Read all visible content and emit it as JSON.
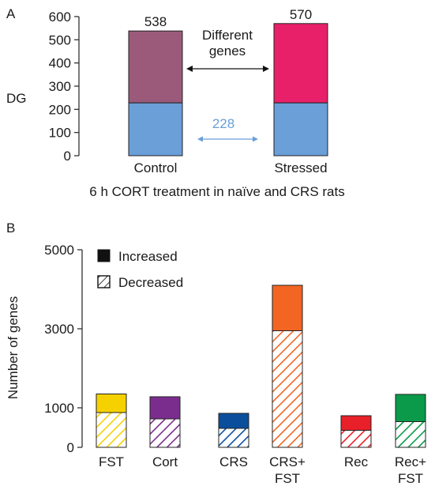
{
  "chart_data": [
    {
      "panel_label": "A",
      "type": "bar",
      "stacked": true,
      "categories": [
        "Control",
        "Stressed"
      ],
      "series": [
        {
          "values": [
            228,
            228
          ],
          "color": "#6a9fd8"
        },
        {
          "values": [
            310,
            342
          ],
          "colors": [
            "#9b5a7a",
            "#e8206a"
          ]
        }
      ],
      "totals": [
        538,
        570
      ],
      "ylabel": "DG",
      "ylim": [
        0,
        600
      ],
      "yticks": [
        0,
        100,
        200,
        300,
        400,
        500,
        600
      ],
      "xlabel": "6 h CORT treatment in naïve and CRS rats",
      "annotations": {
        "different_genes": "Different\ngenes",
        "shared": "228"
      },
      "shared_color": "#6a9fd8",
      "grid": false
    },
    {
      "panel_label": "B",
      "type": "bar",
      "stacked": true,
      "categories": [
        "FST",
        "Cort",
        "CRS",
        "CRS+\nFST",
        "Rec",
        "Rec+\nFST"
      ],
      "series": [
        {
          "name": "Decreased",
          "pattern": "hatched",
          "values": [
            880,
            720,
            480,
            2950,
            430,
            650
          ]
        },
        {
          "name": "Increased",
          "pattern": "solid",
          "values": [
            470,
            560,
            380,
            1150,
            370,
            690
          ]
        }
      ],
      "colors": [
        "#f6d100",
        "#7b2d8e",
        "#0b4f9c",
        "#f26522",
        "#e8202a",
        "#0a9a4a"
      ],
      "ylabel": "Number of genes",
      "ylim": [
        0,
        5000
      ],
      "yticks": [
        0,
        1000,
        3000,
        5000
      ],
      "legend": {
        "placement": "top-left",
        "items": [
          "Increased",
          "Decreased"
        ]
      },
      "grid": false
    }
  ]
}
